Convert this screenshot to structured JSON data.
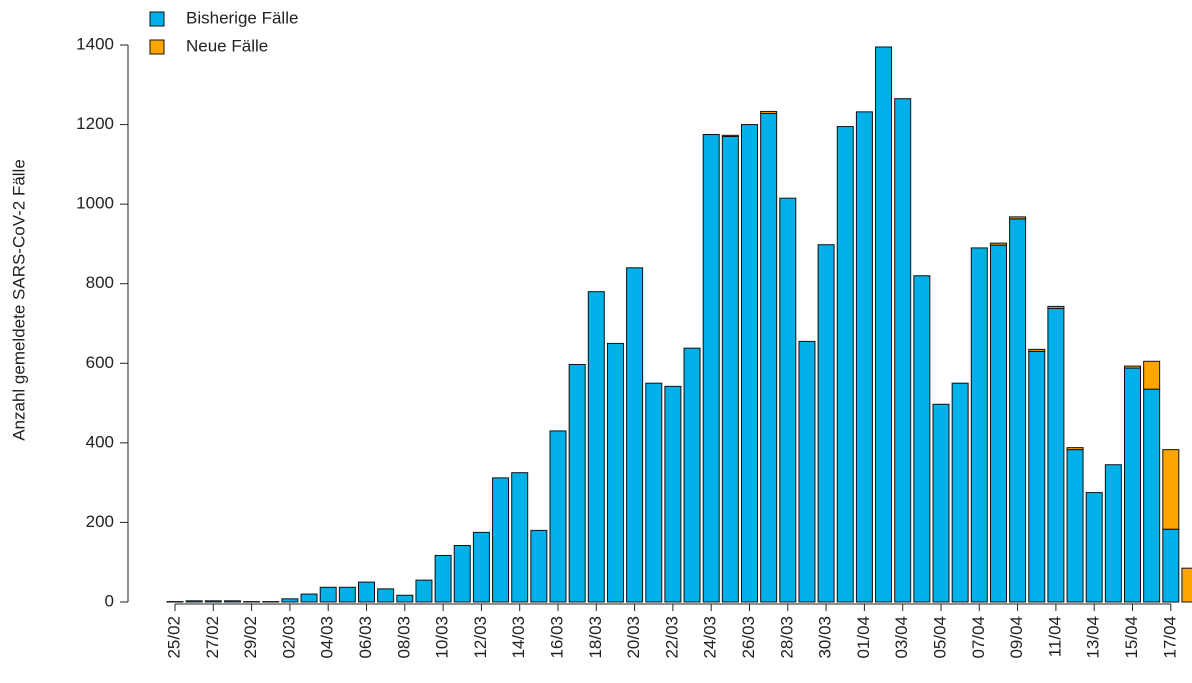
{
  "chart_data": {
    "type": "stacked_bar",
    "y_label": "Anzahl gemeldete SARS-CoV-2 Fälle",
    "categories": [
      "25/02",
      null,
      "27/02",
      null,
      "29/02",
      null,
      "02/03",
      null,
      "04/03",
      null,
      "06/03",
      null,
      "08/03",
      null,
      "10/03",
      null,
      "12/03",
      null,
      "14/03",
      null,
      "16/03",
      null,
      "18/03",
      null,
      "20/03",
      null,
      "22/03",
      null,
      "24/03",
      null,
      "26/03",
      null,
      "28/03",
      null,
      "30/03",
      null,
      "01/04",
      null,
      "03/04",
      null,
      "05/04",
      null,
      "07/04",
      null,
      "09/04",
      null,
      "11/04",
      null,
      "13/04",
      null,
      "15/04",
      null,
      "17/04",
      null
    ],
    "series": [
      {
        "name": "Bisherige Fälle",
        "color": "#00b0e8",
        "values": [
          1,
          3,
          3,
          3,
          1,
          1,
          8,
          20,
          37,
          37,
          50,
          33,
          17,
          55,
          117,
          142,
          175,
          312,
          325,
          180,
          430,
          597,
          780,
          650,
          840,
          550,
          542,
          638,
          1175,
          1170,
          1200,
          1228,
          1015,
          655,
          898,
          1195,
          1232,
          1395,
          1265,
          820,
          497,
          550,
          890,
          897,
          963,
          630,
          738,
          383,
          275,
          345,
          588,
          535,
          183,
          0
        ]
      },
      {
        "name": "Neue Fälle",
        "color": "#ffa500",
        "values": [
          0,
          0,
          0,
          0,
          0,
          0,
          0,
          0,
          0,
          0,
          0,
          0,
          0,
          0,
          0,
          0,
          0,
          0,
          0,
          0,
          0,
          0,
          0,
          0,
          0,
          0,
          0,
          0,
          0,
          3,
          0,
          5,
          0,
          0,
          0,
          0,
          0,
          0,
          0,
          0,
          0,
          0,
          0,
          5,
          5,
          5,
          5,
          5,
          0,
          0,
          5,
          70,
          200,
          85
        ]
      }
    ],
    "ylim": [
      0,
      1400
    ],
    "yticks": [
      0,
      200,
      400,
      600,
      800,
      1000,
      1200,
      1400
    ],
    "legend": "top-left",
    "grid": false
  }
}
